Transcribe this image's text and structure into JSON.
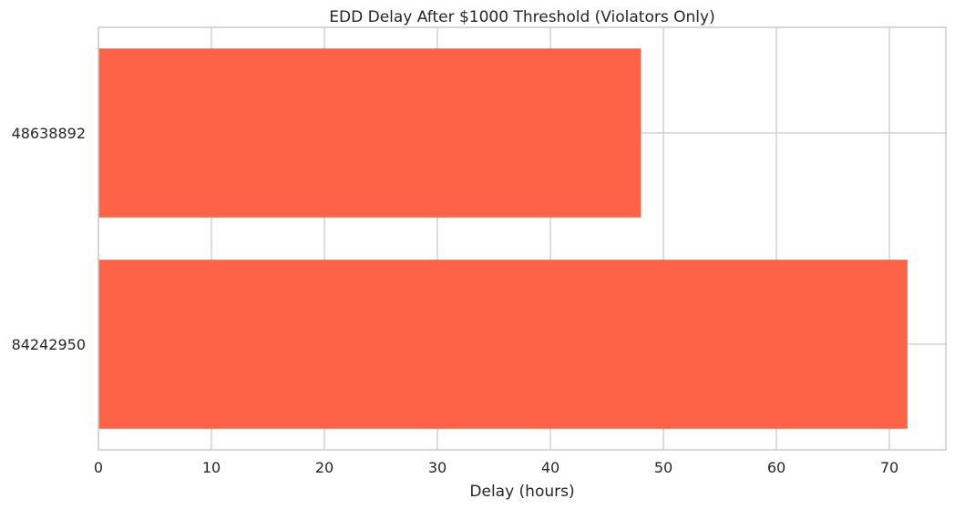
{
  "chart_data": {
    "type": "bar",
    "orientation": "horizontal",
    "title": "EDD Delay After $1000 Threshold (Violators Only)",
    "xlabel": "Delay (hours)",
    "ylabel": "",
    "categories": [
      "48638892",
      "84242950"
    ],
    "values": [
      48.0,
      71.6
    ],
    "xlim": [
      0,
      75
    ],
    "xticks": [
      0,
      10,
      20,
      30,
      40,
      50,
      60,
      70
    ],
    "grid": true,
    "legend": "none",
    "bar_color": "#ff6347",
    "grid_color": "#cccccc",
    "spine_color": "#cccccc"
  }
}
